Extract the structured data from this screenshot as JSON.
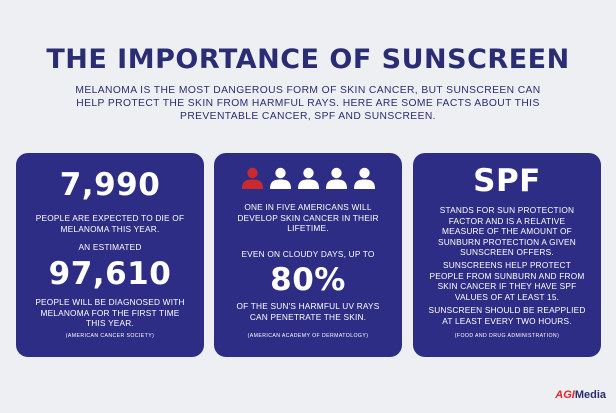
{
  "title": "THE IMPORTANCE OF SUNSCREEN",
  "intro": "MELANOMA IS THE MOST DANGEROUS FORM OF SKIN CANCER, BUT SUNSCREEN CAN HELP PROTECT THE SKIN FROM HARMFUL RAYS. HERE ARE SOME FACTS ABOUT THIS PREVENTABLE CANCER, SPF AND SUNSCREEN.",
  "cards": [
    {
      "stat1": "7,990",
      "text1": "PEOPLE ARE EXPECTED TO DIE OF MELANOMA THIS YEAR.",
      "mid": "AN ESTIMATED",
      "stat2": "97,610",
      "text2": "PEOPLE WILL BE DIAGNOSED WITH MELANOMA FOR THE FIRST TIME THIS YEAR.",
      "source": "(AMERICAN CANCER SOCIETY)"
    },
    {
      "people_icons": {
        "total": 5,
        "highlighted": 1,
        "highlight_color": "#c82a2f",
        "other_color": "#ffffff"
      },
      "text1": "ONE IN FIVE AMERICANS WILL DEVELOP SKIN CANCER IN THEIR LIFETIME.",
      "text2": "EVEN ON CLOUDY DAYS, UP TO",
      "stat": "80%",
      "text3": "OF THE SUN'S HARMFUL UV RAYS CAN PENETRATE THE SKIN.",
      "source": "(AMERICAN ACADEMY OF DERMATOLOGY)"
    },
    {
      "stat": "SPF",
      "text1": "STANDS FOR SUN PROTECTION FACTOR AND IS A RELATIVE MEASURE OF THE AMOUNT OF SUNBURN PROTECTION A GIVEN SUNSCREEN OFFERS.",
      "text2": "SUNSCREENS HELP PROTECT PEOPLE FROM SUNBURN AND FROM SKIN CANCER IF THEY HAVE SPF VALUES OF AT LEAST 15.",
      "text3": "SUNSCREEN SHOULD BE REAPPLIED AT LEAST EVERY TWO HOURS.",
      "source": "(FOOD AND DRUG ADMINISTRATION)"
    }
  ],
  "logo": {
    "mark": "AGI",
    "name": "Media"
  },
  "colors": {
    "background": "#eeeff3",
    "navy": "#2a2d73",
    "card": "#2e2d86",
    "accent": "#e4262b"
  }
}
